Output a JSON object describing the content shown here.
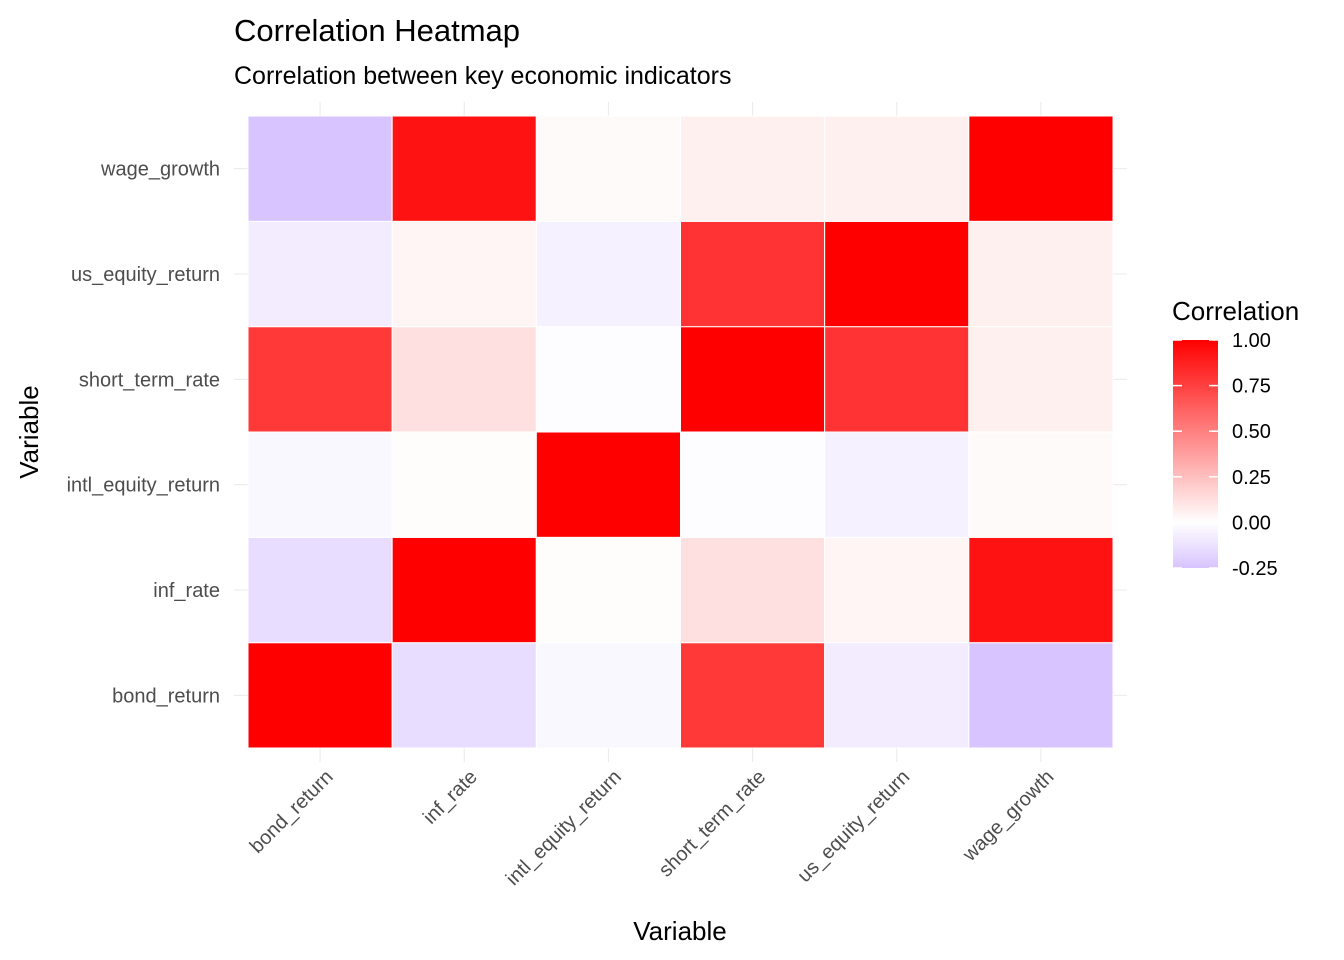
{
  "chart_data": {
    "type": "heatmap",
    "title": "Correlation Heatmap",
    "subtitle": "Correlation between key economic indicators",
    "xlabel": "Variable",
    "ylabel": "Variable",
    "variables": [
      "bond_return",
      "inf_rate",
      "intl_equity_return",
      "short_term_rate",
      "us_equity_return",
      "wage_growth"
    ],
    "matrix": [
      [
        1.0,
        -0.15,
        -0.03,
        0.78,
        -0.08,
        -0.25
      ],
      [
        -0.15,
        1.0,
        0.01,
        0.12,
        0.04,
        0.93
      ],
      [
        -0.03,
        0.01,
        1.0,
        -0.01,
        -0.06,
        0.02
      ],
      [
        0.78,
        0.12,
        -0.01,
        1.0,
        0.8,
        0.06
      ],
      [
        -0.08,
        0.04,
        -0.06,
        0.8,
        1.0,
        0.06
      ],
      [
        -0.25,
        0.93,
        0.02,
        0.06,
        0.06,
        1.0
      ]
    ],
    "color_scale": {
      "low": "#d8c4ff",
      "mid": "#ffffff",
      "high": "#ff0000",
      "min": -0.25,
      "max": 1.0
    },
    "legend": {
      "title": "Correlation",
      "placement": "right",
      "breaks": [
        1.0,
        0.75,
        0.5,
        0.25,
        0.0,
        -0.25
      ],
      "labels": [
        "1.00",
        "0.75",
        "0.50",
        "0.25",
        "0.00",
        "-0.25"
      ]
    },
    "grid": true
  }
}
